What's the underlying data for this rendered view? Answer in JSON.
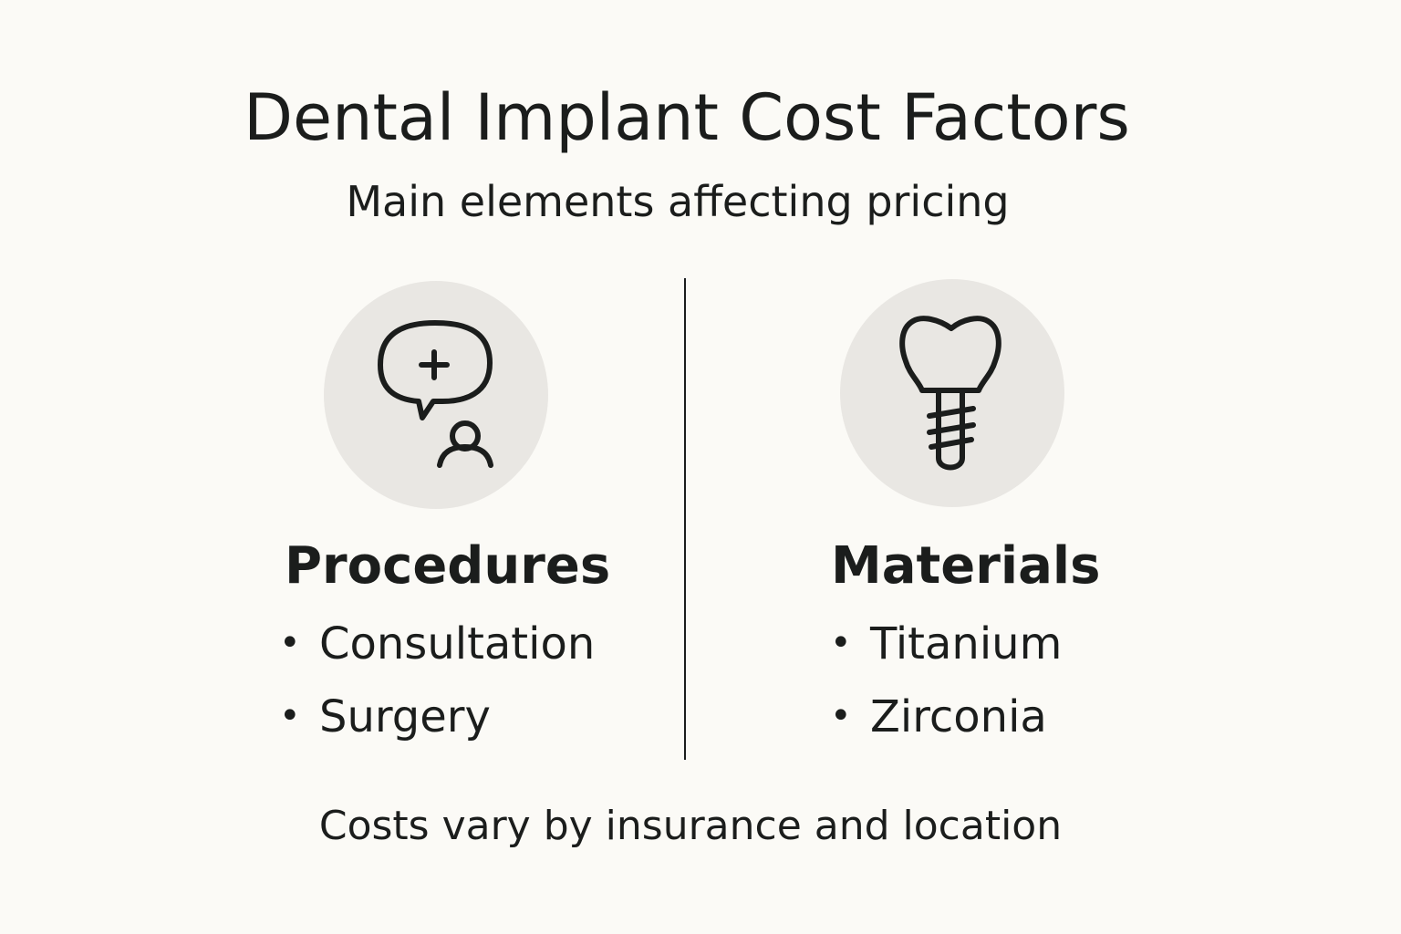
{
  "header": {
    "title": "Dental Implant Cost Factors",
    "subtitle": "Main elements affecting pricing"
  },
  "columns": [
    {
      "heading": "Procedures",
      "items": [
        "Consultation",
        "Surgery"
      ]
    },
    {
      "heading": "Materials",
      "items": [
        "Titanium",
        "Zirconia"
      ]
    }
  ],
  "footer": {
    "note": "Costs vary by insurance and location"
  }
}
